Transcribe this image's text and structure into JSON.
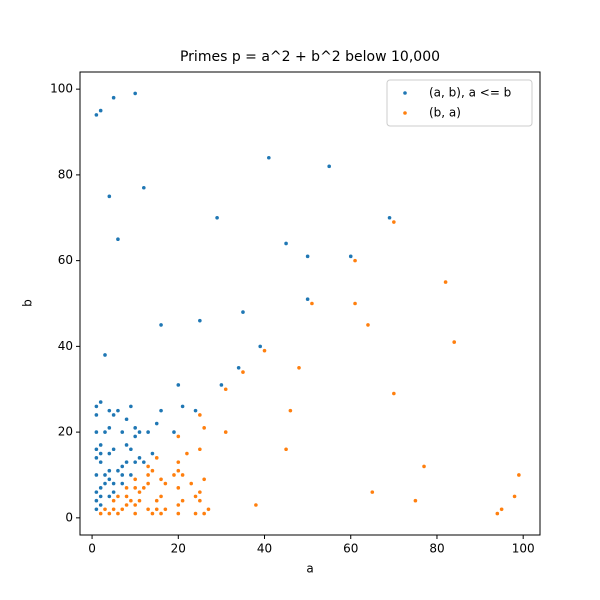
{
  "chart_data": {
    "type": "scatter",
    "title": "Primes p = a^2 + b^2 below 10,000",
    "x_label": "a",
    "y_label": "b",
    "xlim": [
      -2.8,
      103.9
    ],
    "ylim": [
      -4.0,
      104.0
    ],
    "xticks": [
      0,
      20,
      40,
      60,
      80,
      100
    ],
    "yticks": [
      0,
      20,
      40,
      60,
      80,
      100
    ],
    "legend": "upper right",
    "series": [
      {
        "name": "(a, b), a <= b",
        "color": "#1f77b4",
        "x": [
          1,
          1,
          1,
          1,
          1,
          1,
          1,
          1,
          1,
          2,
          2,
          2,
          2,
          2,
          2,
          2,
          3,
          3,
          3,
          3,
          4,
          4,
          4,
          4,
          4,
          4,
          5,
          5,
          5,
          5,
          6,
          6,
          7,
          7,
          7,
          7,
          8,
          8,
          8,
          9,
          9,
          9,
          10,
          10,
          10,
          11,
          11,
          12,
          13,
          14,
          15,
          16,
          19,
          21,
          24,
          30,
          39,
          50,
          60,
          69,
          1,
          10,
          5,
          2,
          41,
          55,
          29,
          16,
          35,
          25,
          6,
          4,
          12,
          50,
          45,
          20,
          34
        ],
        "y": [
          2,
          4,
          6,
          10,
          14,
          16,
          20,
          24,
          26,
          3,
          5,
          7,
          13,
          15,
          17,
          27,
          8,
          10,
          20,
          38,
          5,
          9,
          11,
          15,
          21,
          25,
          6,
          8,
          16,
          24,
          25,
          11,
          10,
          8,
          12,
          20,
          13,
          17,
          23,
          10,
          16,
          26,
          13,
          19,
          21,
          14,
          20,
          13,
          20,
          15,
          22,
          25,
          20,
          26,
          25,
          31,
          40,
          51,
          61,
          70,
          94,
          99,
          98,
          95,
          84,
          82,
          70,
          45,
          48,
          46,
          65,
          75,
          77,
          61,
          64,
          31,
          35
        ]
      },
      {
        "name": "(b, a)",
        "color": "#ff7f0e",
        "x": [
          2,
          4,
          6,
          10,
          14,
          16,
          20,
          24,
          26,
          3,
          5,
          7,
          13,
          15,
          17,
          27,
          8,
          10,
          20,
          38,
          5,
          9,
          11,
          15,
          21,
          25,
          6,
          8,
          16,
          24,
          25,
          11,
          10,
          8,
          12,
          20,
          13,
          17,
          23,
          10,
          16,
          26,
          13,
          19,
          21,
          14,
          20,
          13,
          20,
          15,
          22,
          25,
          20,
          26,
          25,
          31,
          40,
          51,
          61,
          70,
          94,
          99,
          98,
          95,
          84,
          82,
          70,
          45,
          48,
          46,
          65,
          75,
          77,
          61,
          64,
          31,
          35
        ],
        "y": [
          1,
          1,
          1,
          1,
          1,
          1,
          1,
          1,
          1,
          2,
          2,
          2,
          2,
          2,
          2,
          2,
          3,
          3,
          3,
          3,
          4,
          4,
          4,
          4,
          4,
          4,
          5,
          5,
          5,
          5,
          6,
          6,
          7,
          7,
          7,
          7,
          8,
          8,
          8,
          9,
          9,
          9,
          10,
          10,
          10,
          11,
          11,
          12,
          13,
          14,
          15,
          16,
          19,
          21,
          24,
          30,
          39,
          50,
          60,
          69,
          1,
          10,
          5,
          2,
          41,
          55,
          29,
          16,
          35,
          25,
          6,
          4,
          12,
          50,
          45,
          20,
          34
        ]
      }
    ]
  }
}
